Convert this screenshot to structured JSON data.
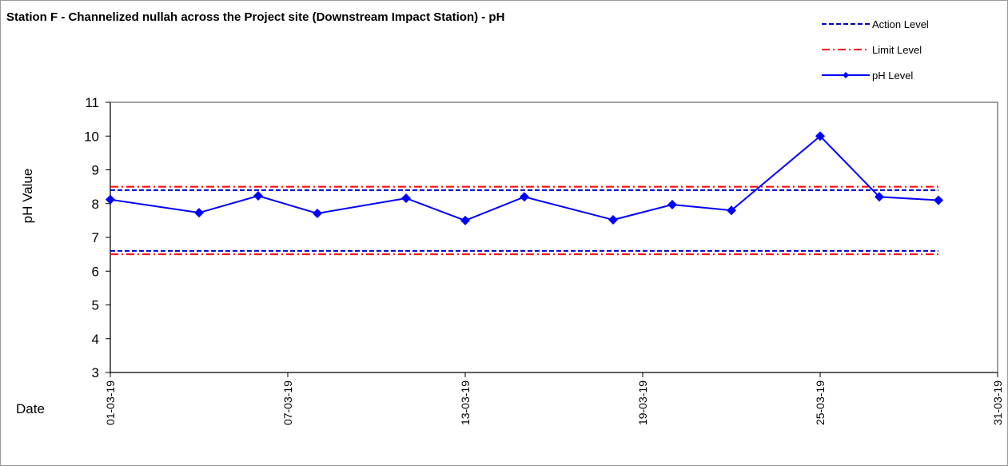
{
  "chart_data": {
    "type": "line",
    "title": "Station F - Channelized nullah across the Project site (Downstream Impact Station) - pH",
    "y_label": "pH Value",
    "x_label": "Date",
    "x": [
      "01-03-19",
      "04-03-19",
      "06-03-19",
      "08-03-19",
      "11-03-19",
      "13-03-19",
      "15-03-19",
      "18-03-19",
      "20-03-19",
      "22-03-19",
      "25-03-19",
      "27-03-19",
      "29-03-19"
    ],
    "series": [
      {
        "name": "pH Level",
        "color": "#0000ff",
        "values": [
          8.12,
          7.73,
          8.23,
          7.71,
          8.16,
          7.5,
          8.2,
          7.52,
          7.97,
          7.8,
          10.0,
          8.2,
          8.1
        ]
      }
    ],
    "thresholds": [
      {
        "name": "Action Level",
        "color": "#0000cc",
        "dash": "dashed",
        "values": [
          8.4,
          6.6
        ]
      },
      {
        "name": "Limit Level",
        "color": "#ff0000",
        "dash": "dashdot",
        "values": [
          8.5,
          6.5
        ]
      }
    ],
    "xlim": [
      "01-03-19",
      "31-03-19"
    ],
    "xticks": [
      "01-03-19",
      "07-03-19",
      "13-03-19",
      "19-03-19",
      "25-03-19",
      "31-03-19"
    ],
    "ylim": [
      3,
      11
    ],
    "yticks": [
      3,
      4,
      5,
      6,
      7,
      8,
      9,
      10,
      11
    ]
  }
}
